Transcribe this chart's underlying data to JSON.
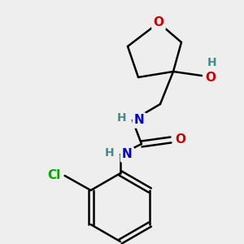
{
  "background_color": "#eeeeee",
  "atom_colors": {
    "C": "#000000",
    "N": "#0000cc",
    "O": "#cc0000",
    "Cl": "#00aa00",
    "H": "#4a8a8a"
  },
  "bond_color": "#000000",
  "bond_width": 1.8,
  "font_size_atoms": 11,
  "font_size_H": 10
}
